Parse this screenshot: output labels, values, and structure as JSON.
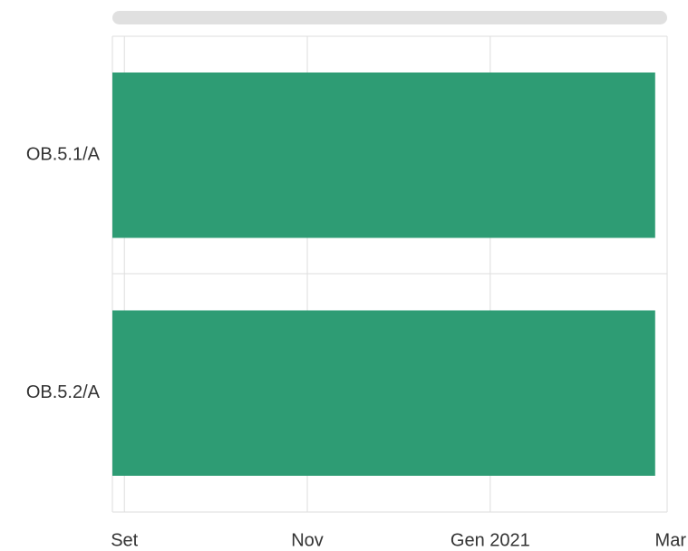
{
  "chart_data": {
    "type": "gantt",
    "categories": [
      "OB.5.1/A",
      "OB.5.2/A"
    ],
    "start": [
      "2020-08-28",
      "2020-08-28"
    ],
    "end": [
      "2021-02-25",
      "2021-02-25"
    ],
    "color": "#2e9c74",
    "xlim": [
      "2020-08-28",
      "2021-03-01"
    ],
    "xticks": [
      {
        "value": "2020-09-01",
        "label": "Set"
      },
      {
        "value": "2020-11-01",
        "label": "Nov"
      },
      {
        "value": "2021-01-01",
        "label": "Gen 2021"
      },
      {
        "value": "2021-03-01",
        "label": "Mar"
      }
    ],
    "grid": true
  }
}
